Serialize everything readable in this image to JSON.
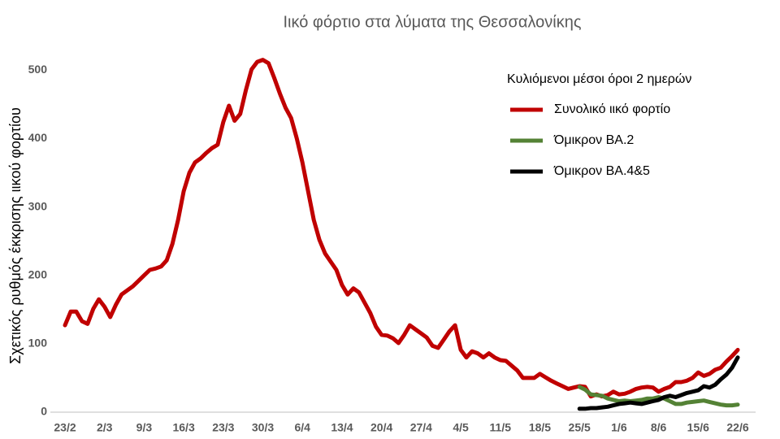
{
  "chart_data": {
    "type": "line",
    "title": "Ιικό φόρτιο στα λύματα της Θεσσαλονίκης",
    "y_label": "Σχετικός ρυθμός έκκρισης ιικού φορτίου",
    "legend_title": "Κυλιόμενοι μέσοι όροι 2 ημερών",
    "legend_position": "top-right",
    "grid": false,
    "categories": [
      "23/2",
      null,
      null,
      null,
      null,
      null,
      null,
      "2/3",
      null,
      null,
      null,
      null,
      null,
      null,
      "9/3",
      null,
      null,
      null,
      null,
      null,
      null,
      "16/3",
      null,
      null,
      null,
      null,
      null,
      null,
      "23/3",
      null,
      null,
      null,
      null,
      null,
      null,
      "30/3",
      null,
      null,
      null,
      null,
      null,
      null,
      "6/4",
      null,
      null,
      null,
      null,
      null,
      null,
      "13/4",
      null,
      null,
      null,
      null,
      null,
      null,
      "20/4",
      null,
      null,
      null,
      null,
      null,
      null,
      "27/4",
      null,
      null,
      null,
      null,
      null,
      null,
      "4/5",
      null,
      null,
      null,
      null,
      null,
      null,
      "11/5",
      null,
      null,
      null,
      null,
      null,
      null,
      "18/5",
      null,
      null,
      null,
      null,
      null,
      null,
      "25/5",
      null,
      null,
      null,
      null,
      null,
      null,
      "1/6",
      null,
      null,
      null,
      null,
      null,
      null,
      "8/6",
      null,
      null,
      null,
      null,
      null,
      null,
      "15/6",
      null,
      null,
      null,
      null,
      null,
      null,
      "22/6"
    ],
    "ylim": [
      0,
      530
    ],
    "yticks": [
      0,
      100,
      200,
      300,
      400,
      500
    ],
    "series": [
      {
        "name": "Συνολικό ιικό φορτίο",
        "color": "#c00000",
        "values": [
          127,
          147,
          147,
          133,
          129,
          151,
          165,
          154,
          139,
          157,
          172,
          178,
          184,
          192,
          200,
          208,
          210,
          213,
          222,
          246,
          281,
          323,
          350,
          365,
          371,
          379,
          386,
          391,
          424,
          448,
          426,
          436,
          471,
          501,
          512,
          515,
          510,
          489,
          466,
          445,
          430,
          400,
          365,
          323,
          281,
          252,
          232,
          220,
          208,
          186,
          172,
          181,
          175,
          160,
          145,
          125,
          113,
          112,
          108,
          101,
          113,
          127,
          121,
          115,
          109,
          97,
          94,
          106,
          118,
          127,
          91,
          80,
          89,
          86,
          80,
          86,
          80,
          76,
          75,
          68,
          61,
          50,
          50,
          50,
          56,
          51,
          46,
          42,
          38,
          34,
          36,
          38,
          37,
          23,
          26,
          23,
          25,
          30,
          26,
          27,
          30,
          34,
          36,
          37,
          36,
          30,
          34,
          37,
          44,
          44,
          46,
          50,
          58,
          53,
          56,
          62,
          65,
          74,
          82,
          91
        ]
      },
      {
        "name": "Όμικρον BA.2",
        "color": "#548235",
        "values": [
          null,
          null,
          null,
          null,
          null,
          null,
          null,
          null,
          null,
          null,
          null,
          null,
          null,
          null,
          null,
          null,
          null,
          null,
          null,
          null,
          null,
          null,
          null,
          null,
          null,
          null,
          null,
          null,
          null,
          null,
          null,
          null,
          null,
          null,
          null,
          null,
          null,
          null,
          null,
          null,
          null,
          null,
          null,
          null,
          null,
          null,
          null,
          null,
          null,
          null,
          null,
          null,
          null,
          null,
          null,
          null,
          null,
          null,
          null,
          null,
          null,
          null,
          null,
          null,
          null,
          null,
          null,
          null,
          null,
          null,
          null,
          null,
          null,
          null,
          null,
          null,
          null,
          null,
          null,
          null,
          null,
          null,
          null,
          null,
          null,
          null,
          null,
          null,
          null,
          null,
          null,
          37,
          33,
          26,
          25,
          24,
          20,
          18,
          16,
          17,
          16,
          17,
          18,
          20,
          20,
          22,
          20,
          16,
          12,
          12,
          14,
          15,
          16,
          17,
          15,
          13,
          11,
          10,
          10,
          11
        ]
      },
      {
        "name": "Όμικρον BA.4&5",
        "color": "#000000",
        "values": [
          null,
          null,
          null,
          null,
          null,
          null,
          null,
          null,
          null,
          null,
          null,
          null,
          null,
          null,
          null,
          null,
          null,
          null,
          null,
          null,
          null,
          null,
          null,
          null,
          null,
          null,
          null,
          null,
          null,
          null,
          null,
          null,
          null,
          null,
          null,
          null,
          null,
          null,
          null,
          null,
          null,
          null,
          null,
          null,
          null,
          null,
          null,
          null,
          null,
          null,
          null,
          null,
          null,
          null,
          null,
          null,
          null,
          null,
          null,
          null,
          null,
          null,
          null,
          null,
          null,
          null,
          null,
          null,
          null,
          null,
          null,
          null,
          null,
          null,
          null,
          null,
          null,
          null,
          null,
          null,
          null,
          null,
          null,
          null,
          null,
          null,
          null,
          null,
          null,
          null,
          null,
          5,
          5,
          6,
          6,
          7,
          8,
          10,
          12,
          13,
          14,
          13,
          12,
          14,
          16,
          18,
          22,
          24,
          22,
          25,
          28,
          30,
          32,
          38,
          36,
          40,
          48,
          55,
          65,
          80
        ]
      }
    ]
  }
}
